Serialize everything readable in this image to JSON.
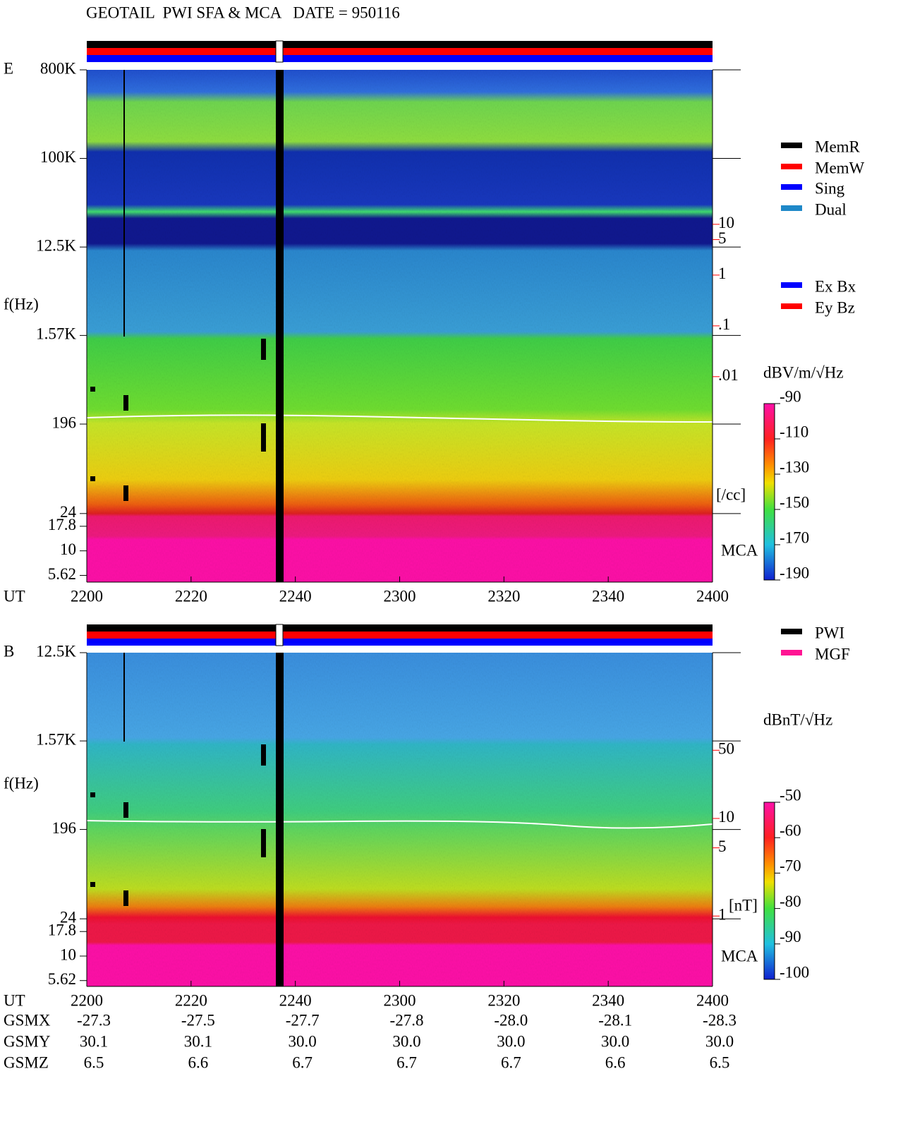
{
  "chart_data": [
    {
      "type": "spectrogram",
      "title": "GEOTAIL  PWI SFA & MCA   DATE = 950116",
      "panel_label": "E",
      "ylabel": "f(Hz)",
      "xlabel": "UT",
      "yscale": "log",
      "xlim": [
        0,
        120
      ],
      "xticks": [
        {
          "value": 0,
          "label": "2200"
        },
        {
          "value": 20,
          "label": "2220"
        },
        {
          "value": 40,
          "label": "2240"
        },
        {
          "value": 60,
          "label": "2300"
        },
        {
          "value": 80,
          "label": "2320"
        },
        {
          "value": 100,
          "label": "2340"
        },
        {
          "value": 120,
          "label": "2400"
        }
      ],
      "ylim": [
        4.8,
        800000
      ],
      "yticks": [
        {
          "value": 800000,
          "label": "800K"
        },
        {
          "value": 100000,
          "label": "100K"
        },
        {
          "value": 12500,
          "label": "12.5K"
        },
        {
          "value": 1570,
          "label": "1.57K"
        },
        196,
        24,
        17.8,
        10,
        5.62
      ],
      "y2scale": "log",
      "y2lim": [
        9e-07,
        11000
      ],
      "y2label": "[/cc]",
      "y2color": "#ff0000",
      "y2ticks": [
        10,
        5,
        1,
        {
          "value": 0.1,
          "label": ".1"
        },
        {
          "value": 0.01,
          "label": ".01"
        }
      ],
      "mca_label": "MCA",
      "legend": [
        {
          "name": "MemR",
          "color": "#000000"
        },
        {
          "name": "MemW",
          "color": "#ff0000"
        },
        {
          "name": "Sing",
          "color": "#0000ff"
        },
        {
          "name": "Dual",
          "color": "#1e88c8"
        }
      ],
      "legend2": [
        {
          "name": "Ex Bx",
          "color": "#0000ff"
        },
        {
          "name": "Ey Bz",
          "color": "#ff0000"
        }
      ],
      "colorbar": {
        "label": "dBV/m/√Hz",
        "lim": [
          -190,
          -90
        ],
        "ticks": [
          -90,
          -110,
          -130,
          -150,
          -170,
          -190
        ]
      }
    },
    {
      "type": "spectrogram",
      "panel_label": "B",
      "ylabel": "f(Hz)",
      "xlabel": "UT",
      "yscale": "log",
      "xlim": [
        0,
        120
      ],
      "xticks": [
        {
          "value": 0,
          "label": "2200"
        },
        {
          "value": 20,
          "label": "2220"
        },
        {
          "value": 40,
          "label": "2240"
        },
        {
          "value": 60,
          "label": "2300"
        },
        {
          "value": 80,
          "label": "2320"
        },
        {
          "value": 100,
          "label": "2340"
        },
        {
          "value": 120,
          "label": "2400"
        }
      ],
      "ylim": [
        4.9,
        12500
      ],
      "yticks": [
        {
          "value": 12500,
          "label": "12.5K"
        },
        {
          "value": 1570,
          "label": "1.57K"
        },
        196,
        24,
        17.8,
        10,
        5.62
      ],
      "y2scale": "log",
      "y2lim": [
        0.19,
        500
      ],
      "y2label": "[nT]",
      "y2color": "#ff0000",
      "y2ticks": [
        50,
        10,
        5,
        1
      ],
      "mca_label": "MCA",
      "legend": [
        {
          "name": "PWI",
          "color": "#000000"
        },
        {
          "name": "MGF",
          "color": "#ff1493"
        }
      ],
      "colorbar": {
        "label": "dBnT/√Hz",
        "lim": [
          -100,
          -50
        ],
        "ticks": [
          -50,
          -60,
          -70,
          -80,
          -90,
          -100
        ]
      },
      "orbit": {
        "rows": [
          {
            "label": "GSMX",
            "values": [
              "-27.3",
              "-27.5",
              "-27.7",
              "-27.8",
              "-28.0",
              "-28.1",
              "-28.3"
            ]
          },
          {
            "label": "GSMY",
            "values": [
              "30.1",
              "30.1",
              "30.0",
              "30.0",
              "30.0",
              "30.0",
              "30.0"
            ]
          },
          {
            "label": "GSMZ",
            "values": [
              "6.5",
              "6.6",
              "6.7",
              "6.7",
              "6.7",
              "6.6",
              "6.5"
            ]
          }
        ]
      }
    }
  ]
}
